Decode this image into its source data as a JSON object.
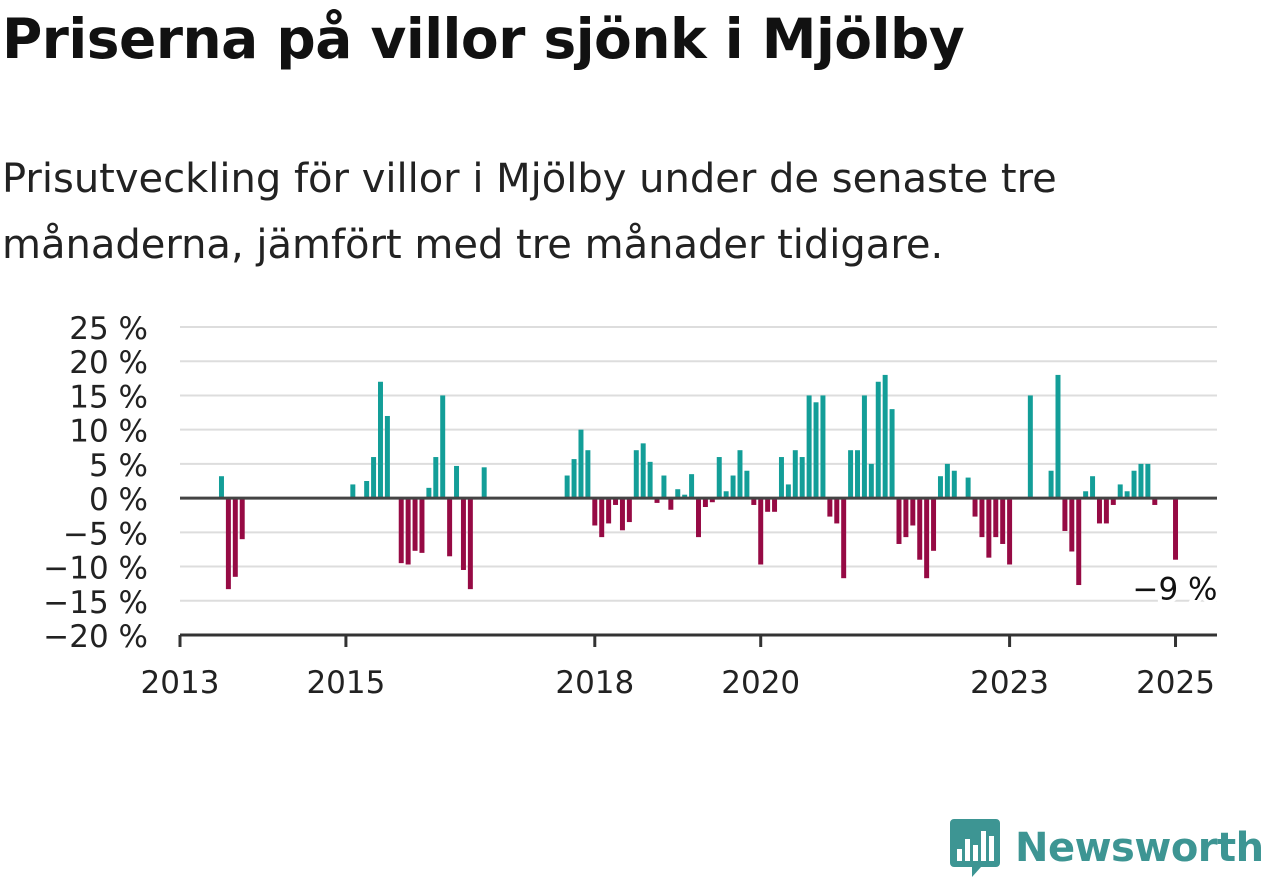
{
  "title": "Priserna på villor sjönk i Mjölby",
  "subtitle": "Prisutveckling för villor i Mjölby under de senaste tre månaderna, jämfört med tre månader tidigare.",
  "brand": {
    "name": "Newsworthy",
    "icon": "newsworthy-logo-icon",
    "color": "#3d9593"
  },
  "colors": {
    "positive": "#139e98",
    "negative": "#960a44",
    "zero_line": "#444444",
    "grid": "#dddddd"
  },
  "chart_data": {
    "type": "bar",
    "title": "",
    "xlabel": "",
    "ylabel": "",
    "ylim": [
      -20,
      25
    ],
    "yticks": [
      -20,
      -15,
      -10,
      -5,
      0,
      5,
      10,
      15,
      20,
      25
    ],
    "ytick_labels": [
      "−20 %",
      "−15 %",
      "−10 %",
      "−5 %",
      "0 %",
      "5 %",
      "10 %",
      "15 %",
      "20 %",
      "25 %"
    ],
    "xlim": [
      "2013-01",
      "2025-07"
    ],
    "xticks": [
      "2013-01",
      "2015-01",
      "2018-01",
      "2020-01",
      "2023-01",
      "2025-01"
    ],
    "xtick_labels": [
      "2013",
      "2015",
      "2018",
      "2020",
      "2023",
      "2025"
    ],
    "grid": true,
    "annotation": {
      "date": "2025-01",
      "value": -9,
      "text": "−9 %"
    },
    "series": [
      {
        "unit": "%",
        "x": [
          "2013-07",
          "2013-08",
          "2013-09",
          "2013-10",
          "2015-02",
          "2015-04",
          "2015-05",
          "2015-06",
          "2015-07",
          "2015-09",
          "2015-10",
          "2015-11",
          "2015-12",
          "2016-01",
          "2016-02",
          "2016-03",
          "2016-04",
          "2016-05",
          "2016-06",
          "2016-07",
          "2016-09",
          "2017-09",
          "2017-10",
          "2017-11",
          "2017-12",
          "2018-01",
          "2018-02",
          "2018-03",
          "2018-04",
          "2018-05",
          "2018-06",
          "2018-07",
          "2018-08",
          "2018-09",
          "2018-10",
          "2018-11",
          "2018-12",
          "2019-01",
          "2019-02",
          "2019-03",
          "2019-04",
          "2019-05",
          "2019-06",
          "2019-07",
          "2019-08",
          "2019-09",
          "2019-10",
          "2019-11",
          "2019-12",
          "2020-01",
          "2020-02",
          "2020-03",
          "2020-04",
          "2020-05",
          "2020-06",
          "2020-07",
          "2020-08",
          "2020-09",
          "2020-10",
          "2020-11",
          "2020-12",
          "2021-01",
          "2021-02",
          "2021-03",
          "2021-04",
          "2021-05",
          "2021-06",
          "2021-07",
          "2021-08",
          "2021-09",
          "2021-10",
          "2021-11",
          "2021-12",
          "2022-01",
          "2022-02",
          "2022-03",
          "2022-04",
          "2022-05",
          "2022-07",
          "2022-08",
          "2022-09",
          "2022-10",
          "2022-11",
          "2022-12",
          "2023-01",
          "2023-04",
          "2023-07",
          "2023-08",
          "2023-09",
          "2023-10",
          "2023-11",
          "2023-12",
          "2024-01",
          "2024-02",
          "2024-03",
          "2024-04",
          "2024-05",
          "2024-06",
          "2024-07",
          "2024-08",
          "2024-09",
          "2024-10",
          "2025-01"
        ],
        "values": [
          3.2,
          -13.3,
          -11.5,
          -6,
          2,
          2.5,
          6,
          17,
          12,
          -9.5,
          -9.7,
          -7.7,
          -8,
          1.5,
          6,
          15,
          -8.5,
          4.7,
          -10.5,
          -13.3,
          4.5,
          3.3,
          5.7,
          10,
          7,
          -4,
          -5.7,
          -3.7,
          -1,
          -4.7,
          -3.5,
          7,
          8,
          5.3,
          -0.7,
          3.3,
          -1.7,
          1.3,
          0.5,
          3.5,
          -5.7,
          -1.3,
          -0.6,
          6,
          1,
          3.3,
          7,
          4,
          -1,
          -9.7,
          -2,
          -2,
          6,
          2,
          7,
          6,
          15,
          14,
          15,
          -2.7,
          -3.7,
          -11.7,
          7,
          7,
          15,
          5,
          17,
          18,
          13,
          -6.7,
          -5.7,
          -4,
          -9,
          -11.7,
          -7.7,
          3.2,
          5,
          4,
          3,
          -2.7,
          -5.7,
          -8.7,
          -5.7,
          -6.7,
          -9.7,
          15,
          4,
          18,
          -4.8,
          -7.8,
          -12.7,
          1,
          3.2,
          -3.7,
          -3.7,
          -1,
          2,
          1,
          4,
          5,
          5,
          -1,
          -9
        ]
      }
    ]
  }
}
